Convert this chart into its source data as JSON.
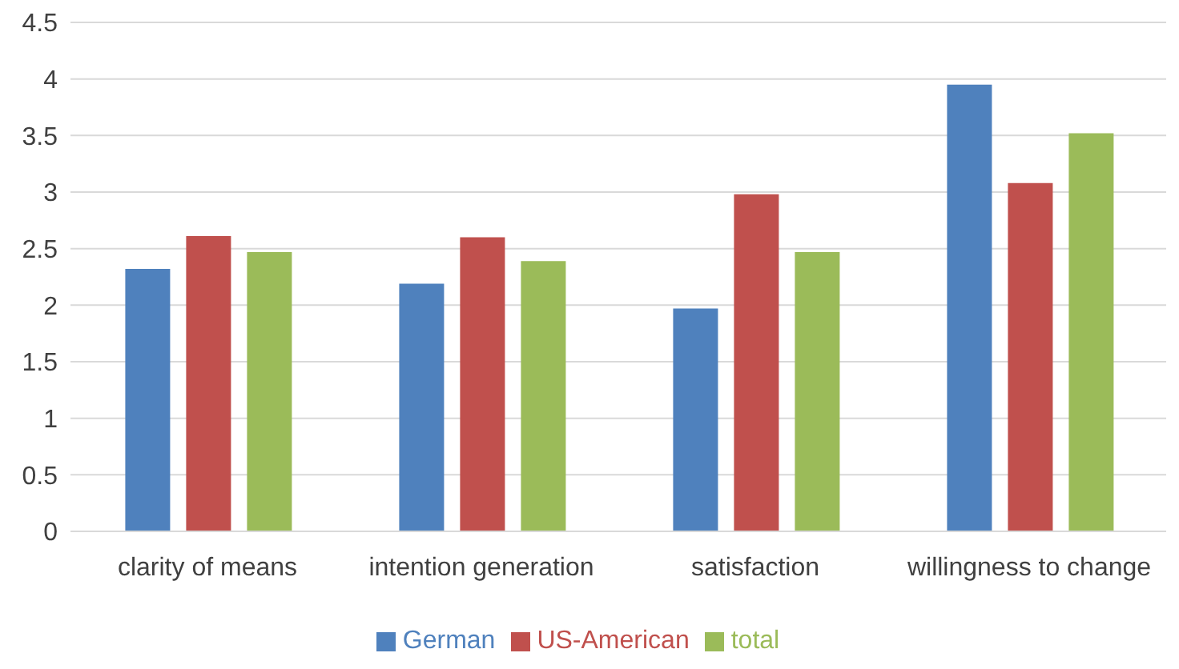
{
  "chart_data": {
    "type": "bar",
    "categories": [
      "clarity of means",
      "intention generation",
      "satisfaction",
      "willingness to change"
    ],
    "series": [
      {
        "name": "German",
        "color": "#4f81bd",
        "values": [
          2.32,
          2.19,
          1.97,
          3.95
        ]
      },
      {
        "name": "US-American",
        "color": "#c0504d",
        "values": [
          2.61,
          2.6,
          2.98,
          3.08
        ]
      },
      {
        "name": "total",
        "color": "#9bbb59",
        "values": [
          2.47,
          2.39,
          2.47,
          3.52
        ]
      }
    ],
    "ylim": [
      0,
      4.5
    ],
    "yticks": [
      0,
      0.5,
      1,
      1.5,
      2,
      2.5,
      3,
      3.5,
      4,
      4.5
    ],
    "grid": "y",
    "legend": "bottom"
  }
}
